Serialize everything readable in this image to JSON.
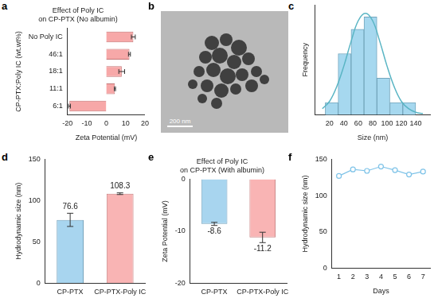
{
  "chart_data": [
    {
      "panel": "a",
      "type": "bar",
      "orientation": "horizontal",
      "title": [
        "Effect of Poly IC",
        "on CP-PTX (No albumin)"
      ],
      "categories": [
        "No Poly IC",
        "46:1",
        "18:1",
        "11:1",
        "6:1"
      ],
      "values": [
        14,
        12,
        8,
        4.5,
        -19
      ],
      "errors": [
        1,
        0.5,
        1.5,
        0.3,
        0.5
      ],
      "color": "#f7a8a8",
      "xlabel": "Zeta Potential (mV)",
      "ylabel": "CP-PTX:Poly IC (wt.wt%)",
      "xlim": [
        -20,
        20
      ],
      "xticks": [
        -20,
        -10,
        0,
        10,
        20
      ],
      "grid": false
    },
    {
      "panel": "c",
      "type": "histogram",
      "bins": [
        14,
        32,
        50,
        68,
        86,
        104,
        122,
        140
      ],
      "values": [
        1,
        5,
        7,
        8,
        3,
        1,
        1
      ],
      "color": "#a6d8ef",
      "series": [
        {
          "type": "line",
          "color": "#5ab5c4",
          "x": [
            10,
            20,
            30,
            40,
            50,
            60,
            70,
            80,
            90,
            100,
            110,
            120,
            130,
            140,
            150
          ],
          "values": [
            0.5,
            1.1,
            2.3,
            4.0,
            6.0,
            7.7,
            8.3,
            7.7,
            6.0,
            4.0,
            2.3,
            1.1,
            0.5,
            0.2,
            0.1
          ]
        }
      ],
      "xlabel": "Size (nm)",
      "ylabel": "Frequency",
      "xlim": [
        0,
        160
      ],
      "xticks": [
        20,
        40,
        60,
        80,
        100,
        120,
        140
      ],
      "ylim": [
        0,
        9
      ],
      "tick_labels": "x",
      "grid": false
    },
    {
      "panel": "d",
      "type": "bar",
      "categories": [
        "CP-PTX",
        "CP-PTX-Poly IC"
      ],
      "values": [
        76.6,
        108.3
      ],
      "errors": [
        8,
        1
      ],
      "colors": [
        "#a8d5ef",
        "#f9b4b4"
      ],
      "ylabel": "Hydrodynamic size (nm)",
      "ylim": [
        0,
        150
      ],
      "yticks": [
        0,
        50,
        100,
        150
      ],
      "data_labels": true,
      "grid": false
    },
    {
      "panel": "e",
      "type": "bar",
      "title": [
        "Effect of Poly IC",
        "on CP-PTX (With albumin)"
      ],
      "categories": [
        "CP-PTX",
        "CP-PTX-Poly IC"
      ],
      "values": [
        -8.6,
        -11.2
      ],
      "errors": [
        0.3,
        1
      ],
      "colors": [
        "#a8d5ef",
        "#f9b4b4"
      ],
      "ylabel": "Zeta Potential (mV)",
      "ylim": [
        -20,
        0
      ],
      "yticks": [
        -20,
        -10,
        0
      ],
      "data_labels": true,
      "grid": false
    },
    {
      "panel": "f",
      "type": "line",
      "x": [
        1,
        2,
        3,
        4,
        5,
        6,
        7
      ],
      "values": [
        127,
        136,
        134,
        140,
        135,
        129,
        133
      ],
      "color": "#7ec3e8",
      "marker": "circle",
      "xlabel": "Days",
      "ylabel": "Hydrodynamic size (nm)",
      "xlim": [
        0.5,
        7.5
      ],
      "xticks": [
        1,
        2,
        3,
        4,
        5,
        6,
        7
      ],
      "ylim": [
        0,
        150
      ],
      "yticks": [
        0,
        50,
        100,
        150
      ],
      "grid": false
    }
  ],
  "image": {
    "panel": "b",
    "scale_bar": "200 nm"
  }
}
